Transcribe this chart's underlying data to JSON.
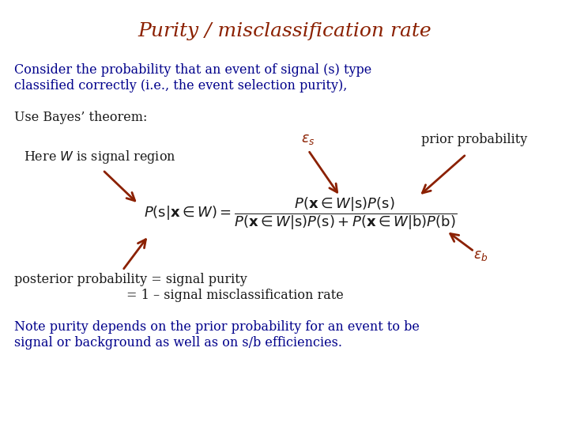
{
  "title": "Purity / misclassification rate",
  "title_color": "#8B2000",
  "title_fontsize": 18,
  "bg_color": "#FFFFFF",
  "blue_color": "#00008B",
  "dark_red": "#8B2000",
  "black_color": "#1a1a1a",
  "body_fontsize": 11.5,
  "math_fontsize": 12,
  "line1": "Consider the probability that an event of signal (s) type",
  "line2": "classified correctly (i.e., the event selection purity),",
  "bayes_line": "Use Bayes’ theorem:",
  "here_W": "Here $\\mathit{W}$ is signal region",
  "prior_prob": "prior probability",
  "eps_s": "$\\varepsilon_s$",
  "eps_b": "$\\varepsilon_b$",
  "formula": "$P(\\mathrm{s}|\\mathbf{x} \\in W) = \\dfrac{P(\\mathbf{x} \\in W|\\mathrm{s})P(\\mathrm{s})}{P(\\mathbf{x} \\in W|\\mathrm{s})P(\\mathrm{s}) + P(\\mathbf{x} \\in W|\\mathrm{b})P(\\mathrm{b})}$",
  "post1": "posterior probability = signal purity",
  "post2": "= 1 – signal misclassification rate",
  "note1": "Note purity depends on the prior probability for an event to be",
  "note2": "signal or background as well as on s/b efficiencies."
}
